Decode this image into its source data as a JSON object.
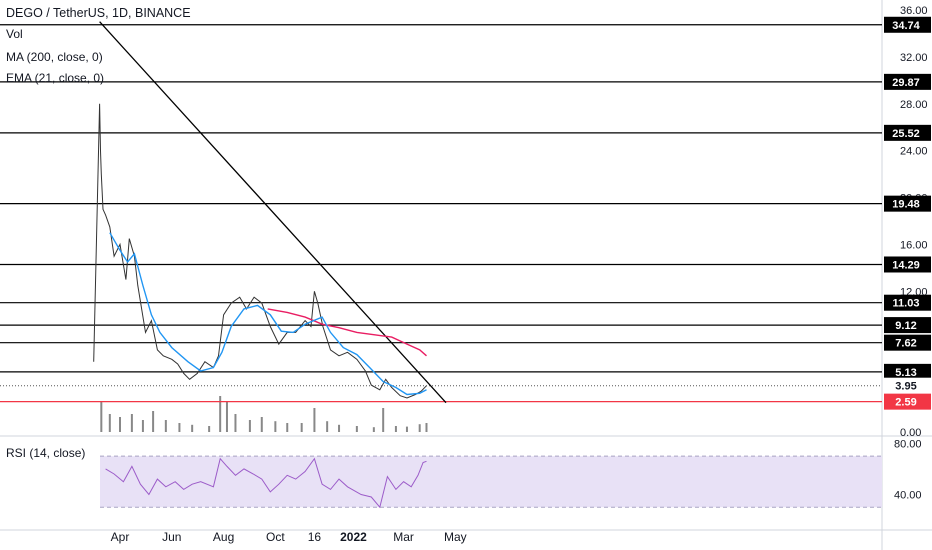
{
  "chart_data": {
    "type": "candlestick",
    "header": {
      "symbol_line": "DEGO / TetherUS, 1D, BINANCE",
      "vol_label": "Vol",
      "ma_label": "MA (200, close, 0)",
      "ema_label": "EMA (21, close, 0)",
      "rsi_label": "RSI (14, close)"
    },
    "y_axis": {
      "scale": "linear",
      "range": [
        0,
        36
      ],
      "ticks": [
        "36.00",
        "32.00",
        "28.00",
        "24.00",
        "20.00",
        "16.00",
        "12.00",
        "0.00"
      ]
    },
    "rsi_axis": {
      "ticks": [
        "80.00",
        "40.00"
      ]
    },
    "x_axis": {
      "ticks": [
        "Apr",
        "Jun",
        "Aug",
        "Oct",
        "16",
        "2022",
        "Mar",
        "May"
      ]
    },
    "price_levels": [
      {
        "value": 34.74,
        "label": "34.74"
      },
      {
        "value": 29.87,
        "label": "29.87"
      },
      {
        "value": 25.52,
        "label": "25.52"
      },
      {
        "value": 19.48,
        "label": "19.48"
      },
      {
        "value": 14.29,
        "label": "14.29"
      },
      {
        "value": 11.03,
        "label": "11.03"
      },
      {
        "value": 9.12,
        "label": "9.12"
      },
      {
        "value": 7.62,
        "label": "7.62"
      },
      {
        "value": 5.13,
        "label": "5.13"
      }
    ],
    "current_price": {
      "value": 3.95,
      "label": "3.95"
    },
    "support_level": {
      "value": 2.59,
      "label": "2.59",
      "color": "#f23645"
    },
    "price_series": [
      [
        "2021-03-01",
        6
      ],
      [
        "2021-03-08",
        28
      ],
      [
        "2021-03-09",
        24
      ],
      [
        "2021-03-10",
        22
      ],
      [
        "2021-03-12",
        19
      ],
      [
        "2021-03-15",
        18.5
      ],
      [
        "2021-03-20",
        17.5
      ],
      [
        "2021-03-25",
        15
      ],
      [
        "2021-04-01",
        16
      ],
      [
        "2021-04-08",
        13
      ],
      [
        "2021-04-12",
        16.5
      ],
      [
        "2021-04-18",
        15
      ],
      [
        "2021-04-22",
        12.5
      ],
      [
        "2021-05-01",
        8.5
      ],
      [
        "2021-05-08",
        9.5
      ],
      [
        "2021-05-15",
        7
      ],
      [
        "2021-05-22",
        6.5
      ],
      [
        "2021-06-01",
        6.2
      ],
      [
        "2021-06-08",
        5.8
      ],
      [
        "2021-06-15",
        5
      ],
      [
        "2021-06-22",
        4.5
      ],
      [
        "2021-07-01",
        5
      ],
      [
        "2021-07-10",
        6
      ],
      [
        "2021-07-20",
        5.5
      ],
      [
        "2021-07-26",
        6.5
      ],
      [
        "2021-08-01",
        10
      ],
      [
        "2021-08-10",
        11
      ],
      [
        "2021-08-20",
        11.5
      ],
      [
        "2021-08-28",
        10.5
      ],
      [
        "2021-09-06",
        11.5
      ],
      [
        "2021-09-15",
        11
      ],
      [
        "2021-09-25",
        9
      ],
      [
        "2021-10-05",
        7.5
      ],
      [
        "2021-10-15",
        8.5
      ],
      [
        "2021-10-25",
        8.5
      ],
      [
        "2021-11-05",
        9.5
      ],
      [
        "2021-11-12",
        9
      ],
      [
        "2021-11-16",
        12
      ],
      [
        "2021-11-20",
        11
      ],
      [
        "2021-11-26",
        9
      ],
      [
        "2021-12-05",
        7
      ],
      [
        "2021-12-15",
        6.5
      ],
      [
        "2021-12-25",
        6.8
      ],
      [
        "2022-01-05",
        6.2
      ],
      [
        "2022-01-15",
        5.2
      ],
      [
        "2022-01-22",
        4
      ],
      [
        "2022-02-01",
        3.6
      ],
      [
        "2022-02-08",
        4.5
      ],
      [
        "2022-02-15",
        3.8
      ],
      [
        "2022-02-25",
        3.1
      ],
      [
        "2022-03-05",
        2.9
      ],
      [
        "2022-03-15",
        3.2
      ],
      [
        "2022-03-22",
        3.5
      ],
      [
        "2022-03-28",
        3.95
      ]
    ],
    "ema21_series": [
      [
        "2021-03-20",
        17
      ],
      [
        "2021-04-01",
        15.5
      ],
      [
        "2021-04-10",
        14.5
      ],
      [
        "2021-04-18",
        15.2
      ],
      [
        "2021-04-28",
        12.5
      ],
      [
        "2021-05-08",
        10
      ],
      [
        "2021-05-18",
        8.5
      ],
      [
        "2021-06-01",
        7.2
      ],
      [
        "2021-06-20",
        6
      ],
      [
        "2021-07-05",
        5.2
      ],
      [
        "2021-07-20",
        5.5
      ],
      [
        "2021-07-30",
        6.8
      ],
      [
        "2021-08-10",
        9
      ],
      [
        "2021-08-25",
        10.5
      ],
      [
        "2021-09-10",
        10.8
      ],
      [
        "2021-09-25",
        10
      ],
      [
        "2021-10-08",
        8.6
      ],
      [
        "2021-10-22",
        8.5
      ],
      [
        "2021-11-05",
        9.2
      ],
      [
        "2021-11-15",
        9.5
      ],
      [
        "2021-11-25",
        9.8
      ],
      [
        "2021-12-05",
        8.5
      ],
      [
        "2021-12-20",
        7.2
      ],
      [
        "2022-01-05",
        6.6
      ],
      [
        "2022-01-20",
        5.5
      ],
      [
        "2022-02-05",
        4.3
      ],
      [
        "2022-02-20",
        3.8
      ],
      [
        "2022-03-05",
        3.2
      ],
      [
        "2022-03-20",
        3.3
      ],
      [
        "2022-03-28",
        3.6
      ]
    ],
    "ma200_series": [
      [
        "2021-09-22",
        10.5
      ],
      [
        "2021-10-15",
        10.2
      ],
      [
        "2021-11-05",
        9.8
      ],
      [
        "2021-11-25",
        9.2
      ],
      [
        "2021-12-15",
        8.9
      ],
      [
        "2022-01-05",
        8.5
      ],
      [
        "2022-01-25",
        8.3
      ],
      [
        "2022-02-15",
        8.1
      ],
      [
        "2022-03-05",
        7.5
      ],
      [
        "2022-03-20",
        7.0
      ],
      [
        "2022-03-28",
        6.5
      ]
    ],
    "trendline": {
      "from": [
        "2021-03-08",
        35
      ],
      "to": [
        "2022-04-20",
        2.5
      ]
    },
    "rsi_series": [
      [
        "2021-03-15",
        60
      ],
      [
        "2021-03-25",
        56
      ],
      [
        "2021-04-05",
        50
      ],
      [
        "2021-04-15",
        62
      ],
      [
        "2021-04-25",
        48
      ],
      [
        "2021-05-05",
        40
      ],
      [
        "2021-05-15",
        52
      ],
      [
        "2021-05-25",
        46
      ],
      [
        "2021-06-05",
        50
      ],
      [
        "2021-06-15",
        44
      ],
      [
        "2021-06-25",
        48
      ],
      [
        "2021-07-05",
        50
      ],
      [
        "2021-07-20",
        46
      ],
      [
        "2021-07-28",
        68
      ],
      [
        "2021-08-05",
        62
      ],
      [
        "2021-08-15",
        55
      ],
      [
        "2021-08-25",
        60
      ],
      [
        "2021-09-05",
        56
      ],
      [
        "2021-09-15",
        52
      ],
      [
        "2021-09-25",
        42
      ],
      [
        "2021-10-05",
        48
      ],
      [
        "2021-10-15",
        55
      ],
      [
        "2021-10-25",
        52
      ],
      [
        "2021-11-05",
        58
      ],
      [
        "2021-11-16",
        68
      ],
      [
        "2021-11-25",
        48
      ],
      [
        "2021-12-05",
        44
      ],
      [
        "2021-12-15",
        52
      ],
      [
        "2021-12-25",
        46
      ],
      [
        "2022-01-10",
        40
      ],
      [
        "2022-01-22",
        38
      ],
      [
        "2022-02-01",
        30
      ],
      [
        "2022-02-10",
        54
      ],
      [
        "2022-02-20",
        44
      ],
      [
        "2022-03-01",
        50
      ],
      [
        "2022-03-10",
        46
      ],
      [
        "2022-03-18",
        55
      ],
      [
        "2022-03-24",
        65
      ],
      [
        "2022-03-28",
        66
      ]
    ],
    "volume_series": [
      [
        "2021-03-10",
        5
      ],
      [
        "2021-03-20",
        3
      ],
      [
        "2021-04-01",
        2.5
      ],
      [
        "2021-04-15",
        3
      ],
      [
        "2021-04-28",
        2
      ],
      [
        "2021-05-10",
        3.5
      ],
      [
        "2021-05-25",
        2
      ],
      [
        "2021-06-10",
        1.5
      ],
      [
        "2021-06-25",
        1.2
      ],
      [
        "2021-07-15",
        1
      ],
      [
        "2021-07-28",
        6
      ],
      [
        "2021-08-05",
        5
      ],
      [
        "2021-08-15",
        3
      ],
      [
        "2021-09-01",
        2
      ],
      [
        "2021-09-15",
        2.5
      ],
      [
        "2021-10-01",
        1.8
      ],
      [
        "2021-10-15",
        1.5
      ],
      [
        "2021-11-01",
        1.5
      ],
      [
        "2021-11-16",
        4
      ],
      [
        "2021-12-01",
        1.8
      ],
      [
        "2021-12-15",
        1.2
      ],
      [
        "2022-01-05",
        1
      ],
      [
        "2022-01-25",
        0.8
      ],
      [
        "2022-02-05",
        4
      ],
      [
        "2022-02-20",
        1
      ],
      [
        "2022-03-05",
        0.9
      ],
      [
        "2022-03-20",
        1.3
      ],
      [
        "2022-03-28",
        1.5
      ]
    ],
    "colors": {
      "price": "#333333",
      "level": "#000000",
      "trendline": "#000000",
      "ema": "#2196f3",
      "ma": "#e91e63",
      "support": "#f23645",
      "rsi": "#9c5cc9",
      "rsi_band": "#e8e1f6",
      "volume": "#888888"
    }
  }
}
